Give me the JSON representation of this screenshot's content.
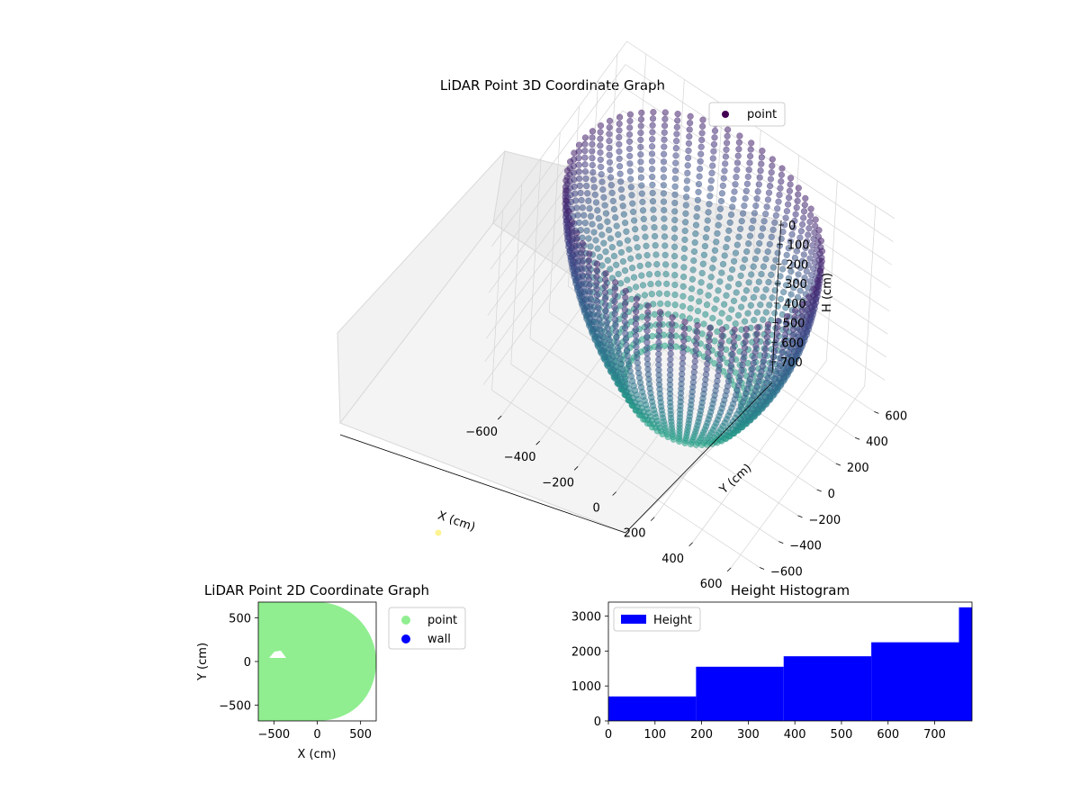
{
  "chart_data": [
    {
      "type": "scatter",
      "projection": "3d",
      "title": "LiDAR Point 3D Coordinate Graph",
      "xlabel": "X (cm)",
      "ylabel": "Y (cm)",
      "zlabel": "H (cm)",
      "xlim": [
        -700,
        700
      ],
      "ylim": [
        -700,
        700
      ],
      "zlim": [
        0,
        780
      ],
      "zaxis_inverted": true,
      "x_ticks": [
        "−600",
        "−400",
        "−200",
        "0",
        "200",
        "400",
        "600"
      ],
      "y_ticks": [
        "−600",
        "−400",
        "−200",
        "0",
        "200",
        "400",
        "600"
      ],
      "z_ticks": [
        "0",
        "100",
        "200",
        "300",
        "400",
        "500",
        "600",
        "700"
      ],
      "legend": {
        "entries": [
          "point"
        ],
        "placement": "top-right"
      },
      "colormap": "viridis",
      "grid": true,
      "marker_color": "#440154",
      "description_shape": "bowl-shaped point cloud of vertical scan lines, radius about 600 cm, height 0 to 780 cm"
    },
    {
      "type": "scatter",
      "title": "LiDAR Point 2D Coordinate Graph",
      "xlabel": "X (cm)",
      "ylabel": "Y (cm)",
      "xlim": [
        -680,
        680
      ],
      "ylim": [
        -680,
        680
      ],
      "x_ticks": [
        "−500",
        "0",
        "500"
      ],
      "y_ticks": [
        "−500",
        "0",
        "500"
      ],
      "series": [
        {
          "name": "point",
          "color": "#90ee90"
        },
        {
          "name": "wall",
          "color": "#0000ff"
        }
      ],
      "legend": {
        "placement": "outside-right"
      }
    },
    {
      "type": "bar",
      "subtype": "histogram",
      "title": "Height Histogram",
      "xlim": [
        0,
        780
      ],
      "ylim": [
        0,
        3400
      ],
      "x_ticks": [
        "0",
        "100",
        "200",
        "300",
        "400",
        "500",
        "600",
        "700"
      ],
      "y_ticks": [
        "0",
        "1000",
        "2000",
        "3000"
      ],
      "bin_edges": [
        0,
        188,
        376,
        564,
        752,
        780
      ],
      "counts": [
        700,
        1550,
        1850,
        2250,
        3250
      ],
      "series": [
        {
          "name": "Height",
          "color": "#0000ff"
        }
      ],
      "legend": {
        "placement": "top-left"
      }
    }
  ]
}
